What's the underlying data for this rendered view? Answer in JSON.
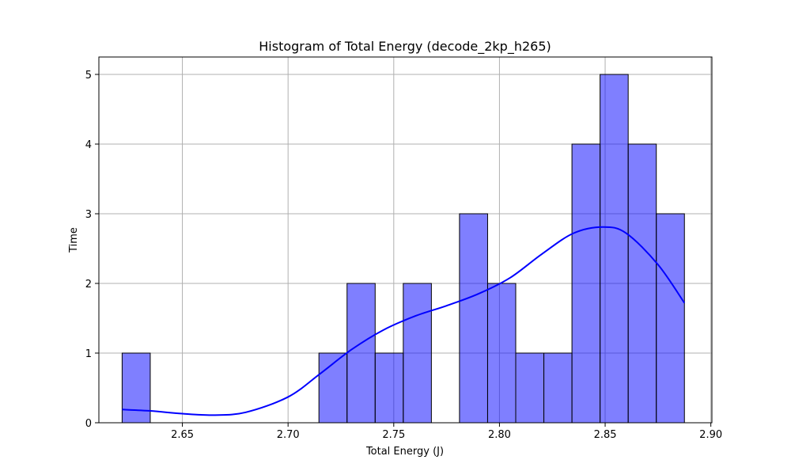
{
  "chart_data": {
    "type": "bar",
    "title": "Histogram of Total Energy (decode_2kp_h265)",
    "xlabel": "Total Energy (J)",
    "ylabel": "Time",
    "xlim": [
      2.6105,
      2.9005
    ],
    "ylim": [
      0,
      5.25
    ],
    "xticks": [
      2.65,
      2.7,
      2.75,
      2.8,
      2.85,
      2.9
    ],
    "xtick_labels": [
      "2.65",
      "2.70",
      "2.75",
      "2.80",
      "2.85",
      "2.90"
    ],
    "yticks": [
      0,
      1,
      2,
      3,
      4,
      5
    ],
    "ytick_labels": [
      "0",
      "1",
      "2",
      "3",
      "4",
      "5"
    ],
    "grid": true,
    "bin_edges": [
      2.6215,
      2.6348,
      2.6481,
      2.6614,
      2.6747,
      2.688,
      2.7013,
      2.7146,
      2.7279,
      2.7412,
      2.7545,
      2.7678,
      2.7811,
      2.7944,
      2.8077,
      2.821,
      2.8343,
      2.8476,
      2.8609,
      2.8742,
      2.8875
    ],
    "counts": [
      1,
      0,
      0,
      0,
      0,
      0,
      0,
      1,
      2,
      1,
      2,
      0,
      3,
      2,
      1,
      1,
      4,
      5,
      4,
      3
    ],
    "kde": {
      "x": [
        2.6215,
        2.635,
        2.65,
        2.665,
        2.68,
        2.7,
        2.715,
        2.73,
        2.745,
        2.76,
        2.775,
        2.79,
        2.805,
        2.82,
        2.835,
        2.849,
        2.86,
        2.875,
        2.8875
      ],
      "y": [
        0.19,
        0.17,
        0.13,
        0.11,
        0.15,
        0.37,
        0.7,
        1.05,
        1.33,
        1.53,
        1.68,
        1.85,
        2.08,
        2.42,
        2.72,
        2.81,
        2.72,
        2.27,
        1.72
      ]
    },
    "colors": {
      "bar": "#0000ff",
      "kde": "#0000ff"
    }
  }
}
